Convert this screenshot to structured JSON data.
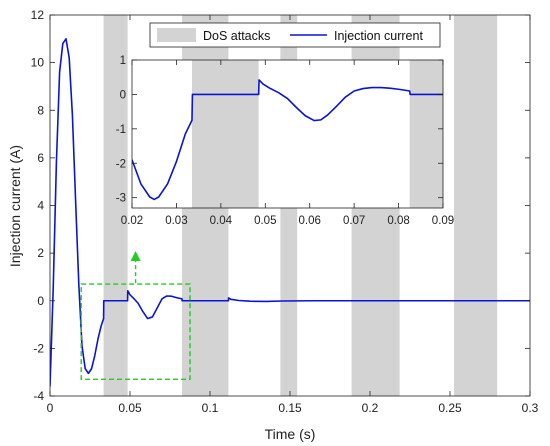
{
  "chart_data": [
    {
      "id": "main",
      "type": "line",
      "xlabel": "Time (s)",
      "ylabel": "Injection current (A)",
      "xlim": [
        0,
        0.3
      ],
      "ylim": [
        -4,
        12
      ],
      "xticks": [
        0,
        0.05,
        0.1,
        0.15,
        0.2,
        0.25,
        0.3
      ],
      "yticks": [
        -4,
        -2,
        0,
        2,
        4,
        6,
        8,
        10,
        12
      ],
      "xtick_labels": [
        "0",
        "0.05",
        "0.1",
        "0.15",
        "0.2",
        "0.25",
        "0.3"
      ],
      "ytick_labels": [
        "-4",
        "-2",
        "0",
        "2",
        "4",
        "6",
        "8",
        "10",
        "12"
      ],
      "grid": false,
      "legend_position": "top-right",
      "legend": [
        "DoS attacks",
        "Injection current"
      ],
      "shaded_intervals": {
        "name": "DoS attacks",
        "color": "#d3d3d3",
        "intervals": [
          [
            0.0335,
            0.0485
          ],
          [
            0.0825,
            0.1115
          ],
          [
            0.144,
            0.1545
          ],
          [
            0.1885,
            0.2185
          ],
          [
            0.2525,
            0.2795
          ]
        ]
      },
      "series": [
        {
          "name": "Injection current",
          "color": "#0a14d6",
          "x": [
            0,
            0.002,
            0.004,
            0.006,
            0.008,
            0.01,
            0.012,
            0.014,
            0.016,
            0.018,
            0.02,
            0.022,
            0.024,
            0.026,
            0.028,
            0.03,
            0.032,
            0.0335,
            0.0336,
            0.0485,
            0.0486,
            0.05,
            0.052,
            0.055,
            0.058,
            0.061,
            0.064,
            0.067,
            0.07,
            0.073,
            0.076,
            0.079,
            0.0825,
            0.0826,
            0.1115,
            0.1116,
            0.113,
            0.118,
            0.125,
            0.135,
            0.145,
            0.165,
            0.2,
            0.3
          ],
          "y": [
            -3.6,
            0.5,
            5.8,
            9.6,
            10.8,
            11.0,
            10.2,
            7.8,
            4.2,
            0.7,
            -1.9,
            -2.85,
            -3.05,
            -2.85,
            -2.3,
            -1.6,
            -1.05,
            -0.75,
            0,
            0,
            0.42,
            0.25,
            0.12,
            -0.1,
            -0.45,
            -0.75,
            -0.68,
            -0.3,
            0.08,
            0.2,
            0.19,
            0.13,
            0.08,
            0,
            0,
            0.12,
            0.06,
            0.01,
            -0.02,
            -0.03,
            -0.01,
            0.0,
            0.0,
            0.0
          ]
        }
      ],
      "highlight_box": {
        "color": "#22cc22",
        "x0": 0.0195,
        "x1": 0.0875,
        "y0": -3.3,
        "y1": 0.7
      }
    },
    {
      "id": "inset",
      "type": "line",
      "xlim": [
        0.02,
        0.09
      ],
      "ylim": [
        -3.3,
        1.0
      ],
      "xticks": [
        0.02,
        0.03,
        0.04,
        0.05,
        0.06,
        0.07,
        0.08,
        0.09
      ],
      "yticks": [
        -3,
        -2,
        -1,
        0,
        1
      ],
      "xtick_labels": [
        "0.02",
        "0.03",
        "0.04",
        "0.05",
        "0.06",
        "0.07",
        "0.08",
        "0.09"
      ],
      "ytick_labels": [
        "-3",
        "-2",
        "-1",
        "0",
        "1"
      ],
      "grid": false,
      "shaded_intervals": {
        "name": "DoS attacks",
        "color": "#d3d3d3",
        "intervals": [
          [
            0.0335,
            0.0485
          ],
          [
            0.0825,
            0.1115
          ]
        ]
      },
      "series": [
        {
          "name": "Injection current",
          "color": "#0a14d6",
          "x": [
            0.02,
            0.022,
            0.024,
            0.025,
            0.026,
            0.028,
            0.03,
            0.032,
            0.0335,
            0.0336,
            0.0485,
            0.0486,
            0.0495,
            0.051,
            0.053,
            0.055,
            0.057,
            0.059,
            0.061,
            0.0625,
            0.064,
            0.066,
            0.068,
            0.07,
            0.072,
            0.074,
            0.076,
            0.078,
            0.08,
            0.082,
            0.0825,
            0.0826,
            0.09
          ],
          "y": [
            -1.9,
            -2.6,
            -2.98,
            -3.05,
            -2.98,
            -2.6,
            -1.95,
            -1.15,
            -0.75,
            0,
            0,
            0.42,
            0.3,
            0.18,
            0.05,
            -0.12,
            -0.38,
            -0.62,
            -0.76,
            -0.74,
            -0.6,
            -0.35,
            -0.08,
            0.1,
            0.17,
            0.2,
            0.2,
            0.18,
            0.15,
            0.11,
            0.1,
            0,
            0
          ]
        }
      ]
    }
  ],
  "highlight_arrow": {
    "color": "#22cc22"
  }
}
